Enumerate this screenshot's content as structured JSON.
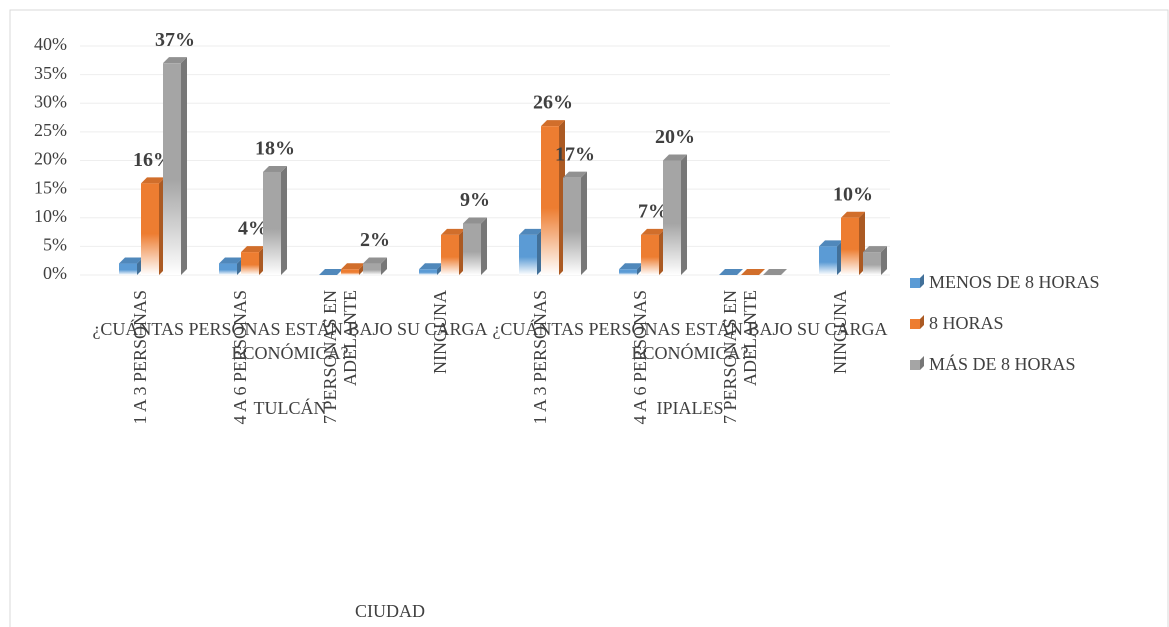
{
  "chart_data": {
    "type": "bar",
    "categories": [
      "1 A 3 PERSONAS",
      "4 A 6 PERSONAS",
      "7 PERSONAS EN ADELANTE",
      "NINGUNA",
      "1 A 3 PERSONAS",
      "4 A 6 PERSONAS",
      "7 PERSONAS EN ADELANTE",
      "NINGUNA"
    ],
    "category_groups": [
      "¿CUÁNTAS PERSONAS ESTÁN BAJO SU CARGA ECONÓMICA?",
      "¿CUÁNTAS PERSONAS ESTÁN BAJO SU CARGA ECONÓMICA?"
    ],
    "cities": [
      "TULCÁN",
      "IPIALES"
    ],
    "x_label": "CIUDAD",
    "series": [
      {
        "name": "MENOS DE 8 HORAS",
        "color": "#5b9bd5",
        "values": [
          2,
          2,
          0,
          1,
          7,
          1,
          0,
          5
        ],
        "value_labels": [
          null,
          null,
          null,
          null,
          null,
          null,
          null,
          null
        ]
      },
      {
        "name": "8 HORAS",
        "color": "#ed7d31",
        "values": [
          16,
          4,
          1,
          7,
          26,
          7,
          0,
          10
        ],
        "value_labels": [
          "16%",
          "4%",
          null,
          null,
          "26%",
          "7%",
          null,
          "10%"
        ]
      },
      {
        "name": "MÁS DE 8 HORAS",
        "color": "#a5a5a5",
        "values": [
          37,
          18,
          2,
          9,
          17,
          20,
          0,
          4
        ],
        "value_labels": [
          "37%",
          "18%",
          "2%",
          "9%",
          "17%",
          "20%",
          null,
          null
        ]
      }
    ],
    "ylim": [
      0,
      40
    ],
    "yticks": [
      {
        "value": 0,
        "label": "0%"
      },
      {
        "value": 5,
        "label": "5%"
      },
      {
        "value": 10,
        "label": "10%"
      },
      {
        "value": 15,
        "label": "15%"
      },
      {
        "value": 20,
        "label": "20%"
      },
      {
        "value": 25,
        "label": "25%"
      },
      {
        "value": 30,
        "label": "30%"
      },
      {
        "value": 35,
        "label": "35%"
      },
      {
        "value": 40,
        "label": "40%"
      }
    ],
    "grid": true,
    "legend": "right"
  }
}
